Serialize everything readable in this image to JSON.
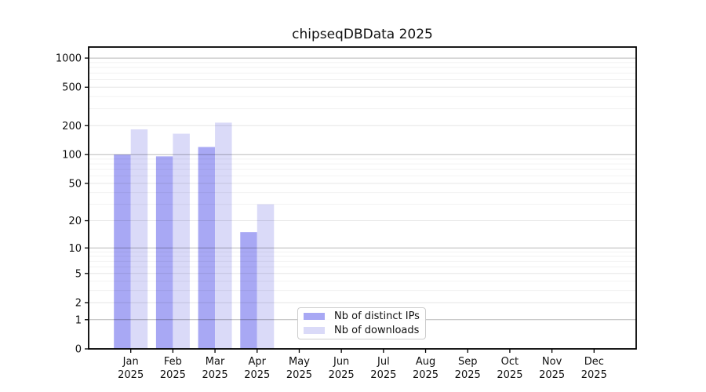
{
  "chart_data": {
    "type": "bar",
    "title": "chipseqDBData 2025",
    "year_label": "2025",
    "categories": [
      "Jan",
      "Feb",
      "Mar",
      "Apr",
      "May",
      "Jun",
      "Jul",
      "Aug",
      "Sep",
      "Oct",
      "Nov",
      "Dec"
    ],
    "series": [
      {
        "name": "Nb of distinct IPs",
        "color": "#a8a8f4",
        "values": [
          100,
          96,
          120,
          15,
          0,
          0,
          0,
          0,
          0,
          0,
          0,
          0
        ]
      },
      {
        "name": "Nb of downloads",
        "color": "#dadaf8",
        "values": [
          183,
          165,
          215,
          30,
          0,
          0,
          0,
          0,
          0,
          0,
          0,
          0
        ]
      }
    ],
    "y_axis": {
      "scale": "log10(1+x)",
      "ticks": [
        0,
        1,
        2,
        5,
        10,
        20,
        50,
        100,
        200,
        500,
        1000
      ],
      "range": [
        0,
        1300
      ]
    },
    "x_axis": {
      "tick_label_line2": "2025"
    },
    "grid": "horizontal",
    "legend_position": "lower center-left inside plot",
    "colors": {
      "spine": "#000000",
      "tick_label": "#111111",
      "grid_decade": "rgba(0,0,0,0.28)",
      "grid_mid": "rgba(0,0,0,0.10)",
      "grid_minor": "rgba(0,0,0,0.05)"
    }
  }
}
